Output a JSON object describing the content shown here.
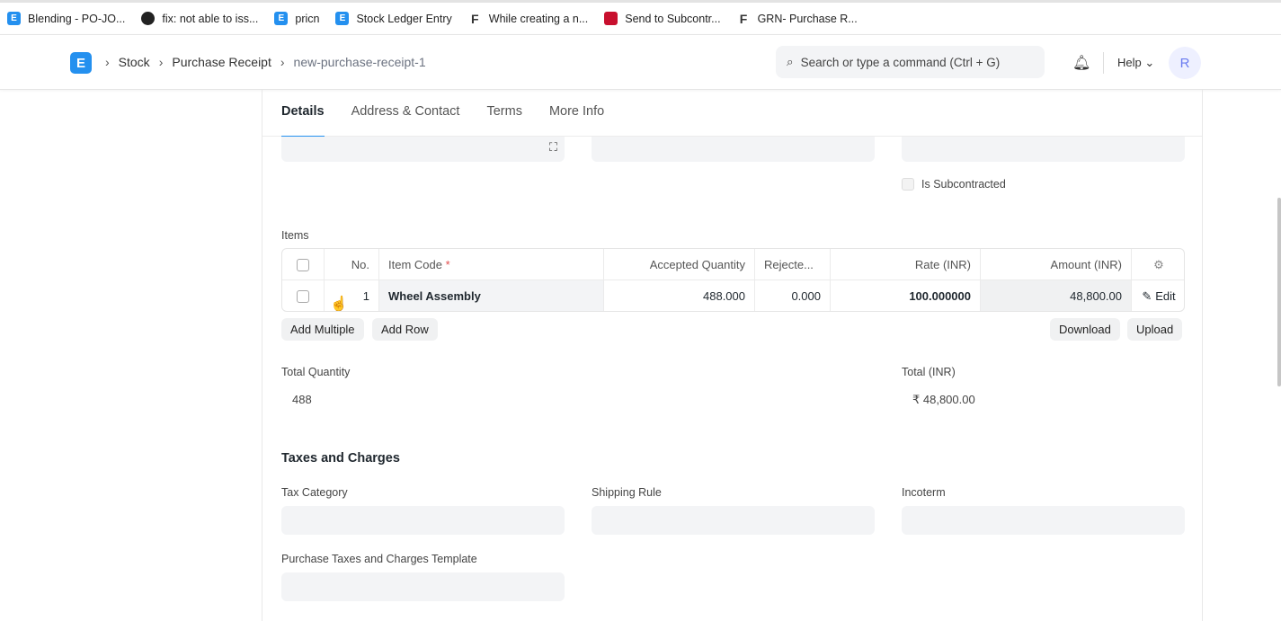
{
  "bookmarks": [
    {
      "label": "Blending - PO-JO...",
      "icon": "erpnext-icon"
    },
    {
      "label": "fix: not able to iss...",
      "icon": "github-icon"
    },
    {
      "label": "pricn",
      "icon": "erpnext-icon"
    },
    {
      "label": "Stock Ledger Entry",
      "icon": "erpnext-icon"
    },
    {
      "label": "While creating a n...",
      "icon": "frappe-icon"
    },
    {
      "label": "Send to Subcontr...",
      "icon": "red-icon"
    },
    {
      "label": "GRN- Purchase R...",
      "icon": "frappe-icon"
    }
  ],
  "navbar": {
    "logo": "E",
    "breadcrumbs": [
      "Stock",
      "Purchase Receipt",
      "new-purchase-receipt-1"
    ],
    "search_placeholder": "Search or type a command (Ctrl + G)",
    "help": "Help",
    "avatar": "R"
  },
  "tabs": [
    "Details",
    "Address & Contact",
    "Terms",
    "More Info"
  ],
  "form": {
    "is_subcontracted": "Is Subcontracted",
    "items_label": "Items",
    "items_table": {
      "headers": [
        "No.",
        "Item Code",
        "Accepted Quantity",
        "Rejecte...",
        "Rate (INR)",
        "Amount (INR)"
      ],
      "required_mark": "*",
      "rows": [
        {
          "no": "1",
          "item_code": "Wheel Assembly",
          "accepted_qty": "488.000",
          "rejected_qty": "0.000",
          "rate": "100.000000",
          "amount": "48,800.00",
          "edit": "Edit"
        }
      ]
    },
    "buttons": {
      "add_multiple": "Add Multiple",
      "add_row": "Add Row",
      "download": "Download",
      "upload": "Upload"
    },
    "total_quantity_label": "Total Quantity",
    "total_quantity": "488",
    "total_label": "Total (INR)",
    "total": "₹ 48,800.00",
    "taxes_heading": "Taxes and Charges",
    "tax_category": "Tax Category",
    "shipping_rule": "Shipping Rule",
    "incoterm": "Incoterm",
    "taxes_template": "Purchase Taxes and Charges Template"
  }
}
